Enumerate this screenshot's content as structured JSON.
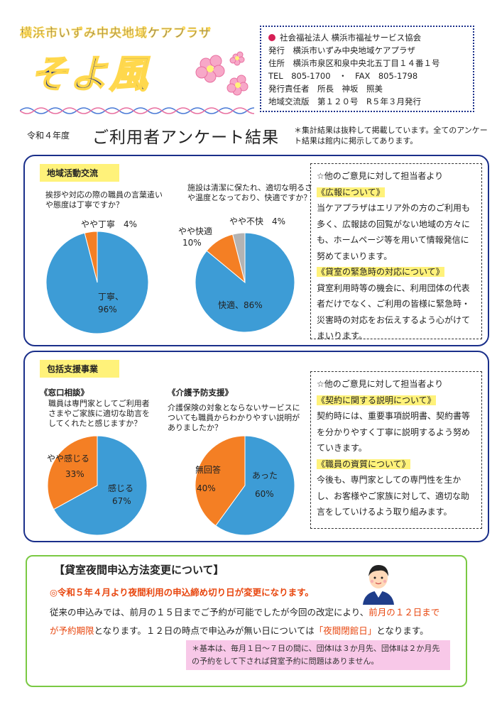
{
  "header": {
    "org_name": "横浜市いずみ中央地域ケアプラザ",
    "title": "そよ風",
    "info": [
      "社会福祉法人 横浜市福祉サービス協会",
      "発行　横浜市いずみ中央地域ケアプラザ",
      "住所　横浜市泉区和泉中央北五丁目１４番１号",
      "TEL　805-1700　・　FAX　805-1798",
      "発行責任者　所長　神坂　照美",
      "地域交流版　第１２０号　R５年３月発行"
    ]
  },
  "survey": {
    "year": "令和４年度",
    "title": "ご利用者アンケート結果",
    "note": "＊集計結果は抜粋して掲載しています。全てのアンケート結果は館内に掲示してあります。"
  },
  "panel1": {
    "label": "地域活動交流",
    "chart1_question": "挨拶や対応の際の職員の言葉遣いや態度は丁寧ですか？",
    "chart2_question": "施設は清潔に保たれ、適切な明るさや温度となっており、快適ですか？",
    "answer": {
      "intro": "☆他のご意見に対して担当者より",
      "topic1": "《広報について》",
      "text1": "当ケアプラザはエリア外の方のご利用も多く、広報誌の回覧がない地域の方々にも、ホームページ等を用いて情報発信に努めてまいります。",
      "topic2": "《貸室の緊急時の対応について》",
      "text2": "貸室利用時等の機会に、利用団体の代表者だけでなく、ご利用の皆様に緊急時・災害時の対応をお伝えするよう心がけてまいります。"
    }
  },
  "panel2": {
    "label": "包括支援事業",
    "sub1": "《窓口相談》",
    "sub2": "《介護予防支援》",
    "chart3_question": "職員は専門家としてご利用者さまやご家族に適切な助言をしてくれたと感じますか？",
    "chart4_question": "介護保険の対象とならないサービスについても職員からわかりやすい説明がありましたか？",
    "answer": {
      "intro": "☆他のご意見に対して担当者より",
      "topic1": "《契約に関する説明について》",
      "text1": "契約時には、重要事項説明書、契約書等を分かりやすく丁寧に説明するよう努めていきます。",
      "topic2": "《職員の資質について》",
      "text2": "今後も、専門家としての専門性を生かし、お客様やご家族に対して、適切な助言をしていけるよう取り組みます。"
    }
  },
  "chart_data": [
    {
      "type": "pie",
      "categories": [
        "丁寧",
        "やや丁寧"
      ],
      "values": [
        96,
        4
      ],
      "colors": [
        "#3d9cd6",
        "#f47f24"
      ],
      "labels": [
        "丁寧、",
        "96%",
        "やや丁寧　4%"
      ]
    },
    {
      "type": "pie",
      "categories": [
        "快適",
        "やや快適",
        "やや不快"
      ],
      "values": [
        86,
        10,
        4
      ],
      "colors": [
        "#3d9cd6",
        "#f47f24",
        "#b3b3b3"
      ],
      "labels": [
        "快適、86%",
        "やや快適",
        "10%",
        "やや不快　4%"
      ]
    },
    {
      "type": "pie",
      "categories": [
        "感じる",
        "やや感じる"
      ],
      "values": [
        67,
        33
      ],
      "colors": [
        "#3d9cd6",
        "#f47f24"
      ],
      "labels": [
        "感じる",
        "67%",
        "やや感じる",
        "33%"
      ]
    },
    {
      "type": "pie",
      "categories": [
        "あった",
        "無回答"
      ],
      "values": [
        60,
        40
      ],
      "colors": [
        "#3d9cd6",
        "#f47f24"
      ],
      "labels": [
        "あった",
        "60%",
        "無回答",
        "40%"
      ]
    }
  ],
  "notice": {
    "title": "【貸室夜間申込方法変更について】",
    "line1": "◎令和５年４月より夜間利用の申込締め切り日が変更になります。",
    "body_a": "従来の申込みでは、前月の１５日までご予約が可能でしたが今回の改定により、",
    "body_b": "前月の１２日までが予約期限",
    "body_c": "となります。１２日の時点で申込みが無い日については",
    "body_d": "「夜間閉館日」",
    "body_e": "となります。",
    "pink": "＊基本は、毎月１日～７日の間に、団体Ⅰは３か月先、団体Ⅱは２か月先の予約をして下されば貸室予約に問題はありません。"
  }
}
